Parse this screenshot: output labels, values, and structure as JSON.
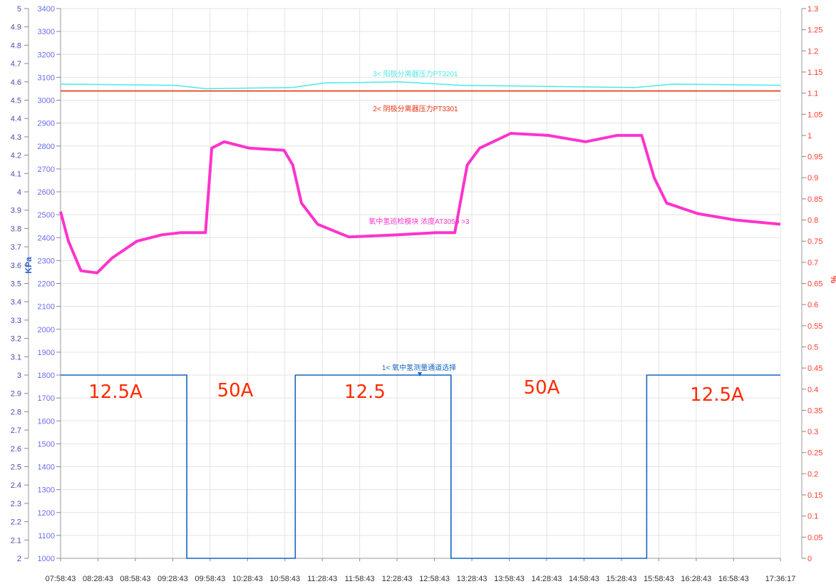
{
  "chart_data": {
    "type": "line",
    "title": "",
    "xlabel": "",
    "ylabel_left": "KPa",
    "ylabel_right": "%",
    "grid": true,
    "x_ticks": [
      "07:58:43",
      "08:28:43",
      "08:58:43",
      "09:28:43",
      "09:58:43",
      "10:28:43",
      "10:58:43",
      "11:28:43",
      "11:58:43",
      "12:28:43",
      "12:58:43",
      "13:28:43",
      "13:58:43",
      "14:28:43",
      "14:58:43",
      "15:28:43",
      "15:58:43",
      "16:28:43",
      "16:58:43",
      "17:36:17"
    ],
    "x_range": [
      "07:58:43",
      "17:36:17"
    ],
    "axis_outer": {
      "ticks": [
        "5",
        "4.9",
        "4.8",
        "4.7",
        "4.6",
        "4.5",
        "4.4",
        "4.3",
        "4.2",
        "4.1",
        "4",
        "3.9",
        "3.8",
        "3.7",
        "3.6",
        "3.5",
        "3.4",
        "3.3",
        "3.2",
        "3.1",
        "3",
        "2.9",
        "2.8",
        "2.7",
        "2.6",
        "2.5",
        "2.4",
        "2.3",
        "2.2",
        "2.1",
        "2"
      ],
      "range": [
        2,
        5
      ]
    },
    "axis_kpa": {
      "ticks": [
        "3400",
        "3300",
        "3200",
        "3100",
        "3000",
        "2900",
        "2800",
        "2700",
        "2600",
        "2500",
        "2400",
        "2300",
        "2200",
        "2100",
        "2000",
        "1900",
        "1800",
        "1700",
        "1600",
        "1500",
        "1400",
        "1300",
        "1200",
        "1100",
        "1000"
      ],
      "range": [
        1000,
        3400
      ]
    },
    "axis_pct": {
      "ticks": [
        "1.3",
        "1.25",
        "1.2",
        "1.15",
        "1.1",
        "1.05",
        "1",
        "0.95",
        "0.9",
        "0.85",
        "0.8",
        "0.75",
        "0.7",
        "0.65",
        "0.6",
        "0.55",
        "0.5",
        "0.45",
        "0.4",
        "0.35",
        "0.3",
        "0.25",
        "0.2",
        "0.15",
        "0.1",
        "0.05",
        "0"
      ],
      "range": [
        0,
        1.3
      ]
    },
    "series": [
      {
        "name": "1< 氧中氢测量通道选择",
        "color": "#1565c0",
        "axis": "outer",
        "points": [
          [
            "07:58:43",
            3
          ],
          [
            "09:40:00",
            3
          ],
          [
            "09:40:00",
            2
          ],
          [
            "11:07:00",
            2
          ],
          [
            "11:07:00",
            3
          ],
          [
            "13:12:00",
            3
          ],
          [
            "13:12:00",
            2
          ],
          [
            "15:49:00",
            2
          ],
          [
            "15:49:00",
            3
          ],
          [
            "17:36:17",
            3
          ]
        ]
      },
      {
        "name": "2< 阴极分离器压力PT3301",
        "color": "#e8320c",
        "axis": "kpa",
        "points": [
          [
            "07:58:43",
            3040
          ],
          [
            "17:36:17",
            3040
          ]
        ]
      },
      {
        "name": "3< 阳极分离器压力PT3201",
        "color": "#4de8e8",
        "axis": "kpa",
        "points": [
          [
            "07:58:43",
            3070
          ],
          [
            "09:30:00",
            3065
          ],
          [
            "09:55:00",
            3050
          ],
          [
            "11:05:00",
            3055
          ],
          [
            "11:30:00",
            3075
          ],
          [
            "12:30:00",
            3080
          ],
          [
            "13:20:00",
            3065
          ],
          [
            "15:40:00",
            3055
          ],
          [
            "16:10:00",
            3070
          ],
          [
            "17:36:17",
            3065
          ]
        ]
      },
      {
        "name": "氧中氢巡检模块 浓度AT3050 >3",
        "color": "#ff33cc",
        "axis": "pct",
        "points": [
          [
            "07:58:43",
            0.82
          ],
          [
            "08:05:00",
            0.75
          ],
          [
            "08:15:00",
            0.68
          ],
          [
            "08:28:00",
            0.675
          ],
          [
            "08:40:00",
            0.71
          ],
          [
            "09:00:00",
            0.75
          ],
          [
            "09:20:00",
            0.765
          ],
          [
            "09:35:00",
            0.77
          ],
          [
            "09:55:00",
            0.77
          ],
          [
            "10:00:00",
            0.97
          ],
          [
            "10:10:00",
            0.985
          ],
          [
            "10:30:00",
            0.97
          ],
          [
            "10:58:00",
            0.965
          ],
          [
            "11:05:00",
            0.93
          ],
          [
            "11:12:00",
            0.84
          ],
          [
            "11:25:00",
            0.79
          ],
          [
            "11:50:00",
            0.76
          ],
          [
            "12:30:00",
            0.765
          ],
          [
            "13:00:00",
            0.77
          ],
          [
            "13:15:00",
            0.77
          ],
          [
            "13:25:00",
            0.93
          ],
          [
            "13:35:00",
            0.97
          ],
          [
            "14:00:00",
            1.005
          ],
          [
            "14:30:00",
            1.0
          ],
          [
            "15:00:00",
            0.985
          ],
          [
            "15:25:00",
            1.0
          ],
          [
            "15:45:00",
            1.0
          ],
          [
            "15:55:00",
            0.9
          ],
          [
            "16:05:00",
            0.84
          ],
          [
            "16:30:00",
            0.815
          ],
          [
            "17:00:00",
            0.8
          ],
          [
            "17:36:17",
            0.79
          ]
        ]
      }
    ],
    "annotations": [
      "12.5A",
      "50A",
      "12.5",
      "50A",
      "12.5A"
    ]
  }
}
